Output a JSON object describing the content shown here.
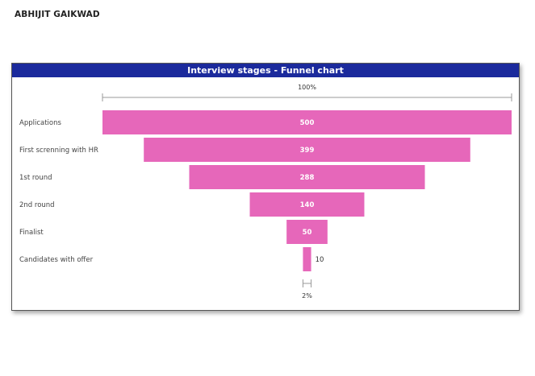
{
  "page": {
    "author": "ABHIJIT GAIKWAD"
  },
  "card": {
    "title": "Interview stages - Funnel chart"
  },
  "chart_data": {
    "type": "funnel",
    "title": "Interview stages - Funnel chart",
    "categories": [
      "Applications",
      "First screnning with HR",
      "1st round",
      "2nd round",
      "Finalist",
      "Candidates with offer"
    ],
    "values": [
      500,
      399,
      288,
      140,
      50,
      10
    ],
    "top_percent_label": "100%",
    "bottom_percent_label": "2%",
    "colors": {
      "bar": "#e667ba",
      "header": "#1b2a9c",
      "label_inside": "#ffffff",
      "label_outside": "#333333",
      "category_text": "#444444",
      "scale_line": "#999999"
    }
  }
}
